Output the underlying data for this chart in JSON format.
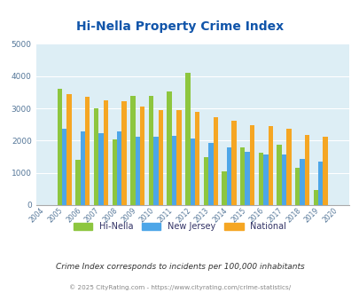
{
  "title": "Hi-Nella Property Crime Index",
  "years": [
    2004,
    2005,
    2006,
    2007,
    2008,
    2009,
    2010,
    2011,
    2012,
    2013,
    2014,
    2015,
    2016,
    2017,
    2018,
    2019,
    2020
  ],
  "hi_nella": [
    0,
    3620,
    1400,
    3000,
    2050,
    3400,
    3380,
    3530,
    4100,
    1500,
    1060,
    1800,
    1630,
    1880,
    1150,
    460,
    0
  ],
  "new_jersey": [
    0,
    2360,
    2290,
    2220,
    2290,
    2110,
    2110,
    2160,
    2070,
    1930,
    1780,
    1650,
    1560,
    1570,
    1430,
    1340,
    0
  ],
  "national": [
    0,
    3450,
    3350,
    3260,
    3220,
    3060,
    2960,
    2940,
    2880,
    2740,
    2620,
    2490,
    2460,
    2360,
    2190,
    2130,
    0
  ],
  "hi_nella_color": "#8dc63f",
  "new_jersey_color": "#4da6e8",
  "national_color": "#f5a623",
  "bg_color": "#ddeef5",
  "title_color": "#1155aa",
  "ylim": [
    0,
    5000
  ],
  "yticks": [
    0,
    1000,
    2000,
    3000,
    4000,
    5000
  ],
  "subtitle": "Crime Index corresponds to incidents per 100,000 inhabitants",
  "footer": "© 2025 CityRating.com - https://www.cityrating.com/crime-statistics/",
  "bar_width": 0.26,
  "grid_color": "#ffffff",
  "legend_labels": [
    "Hi-Nella",
    "New Jersey",
    "National"
  ],
  "subtitle_color": "#333333",
  "footer_color": "#888888",
  "legend_color_hi_nella": "#8dc63f",
  "legend_color_nj": "#4da6e8",
  "legend_color_nat": "#f5a623"
}
